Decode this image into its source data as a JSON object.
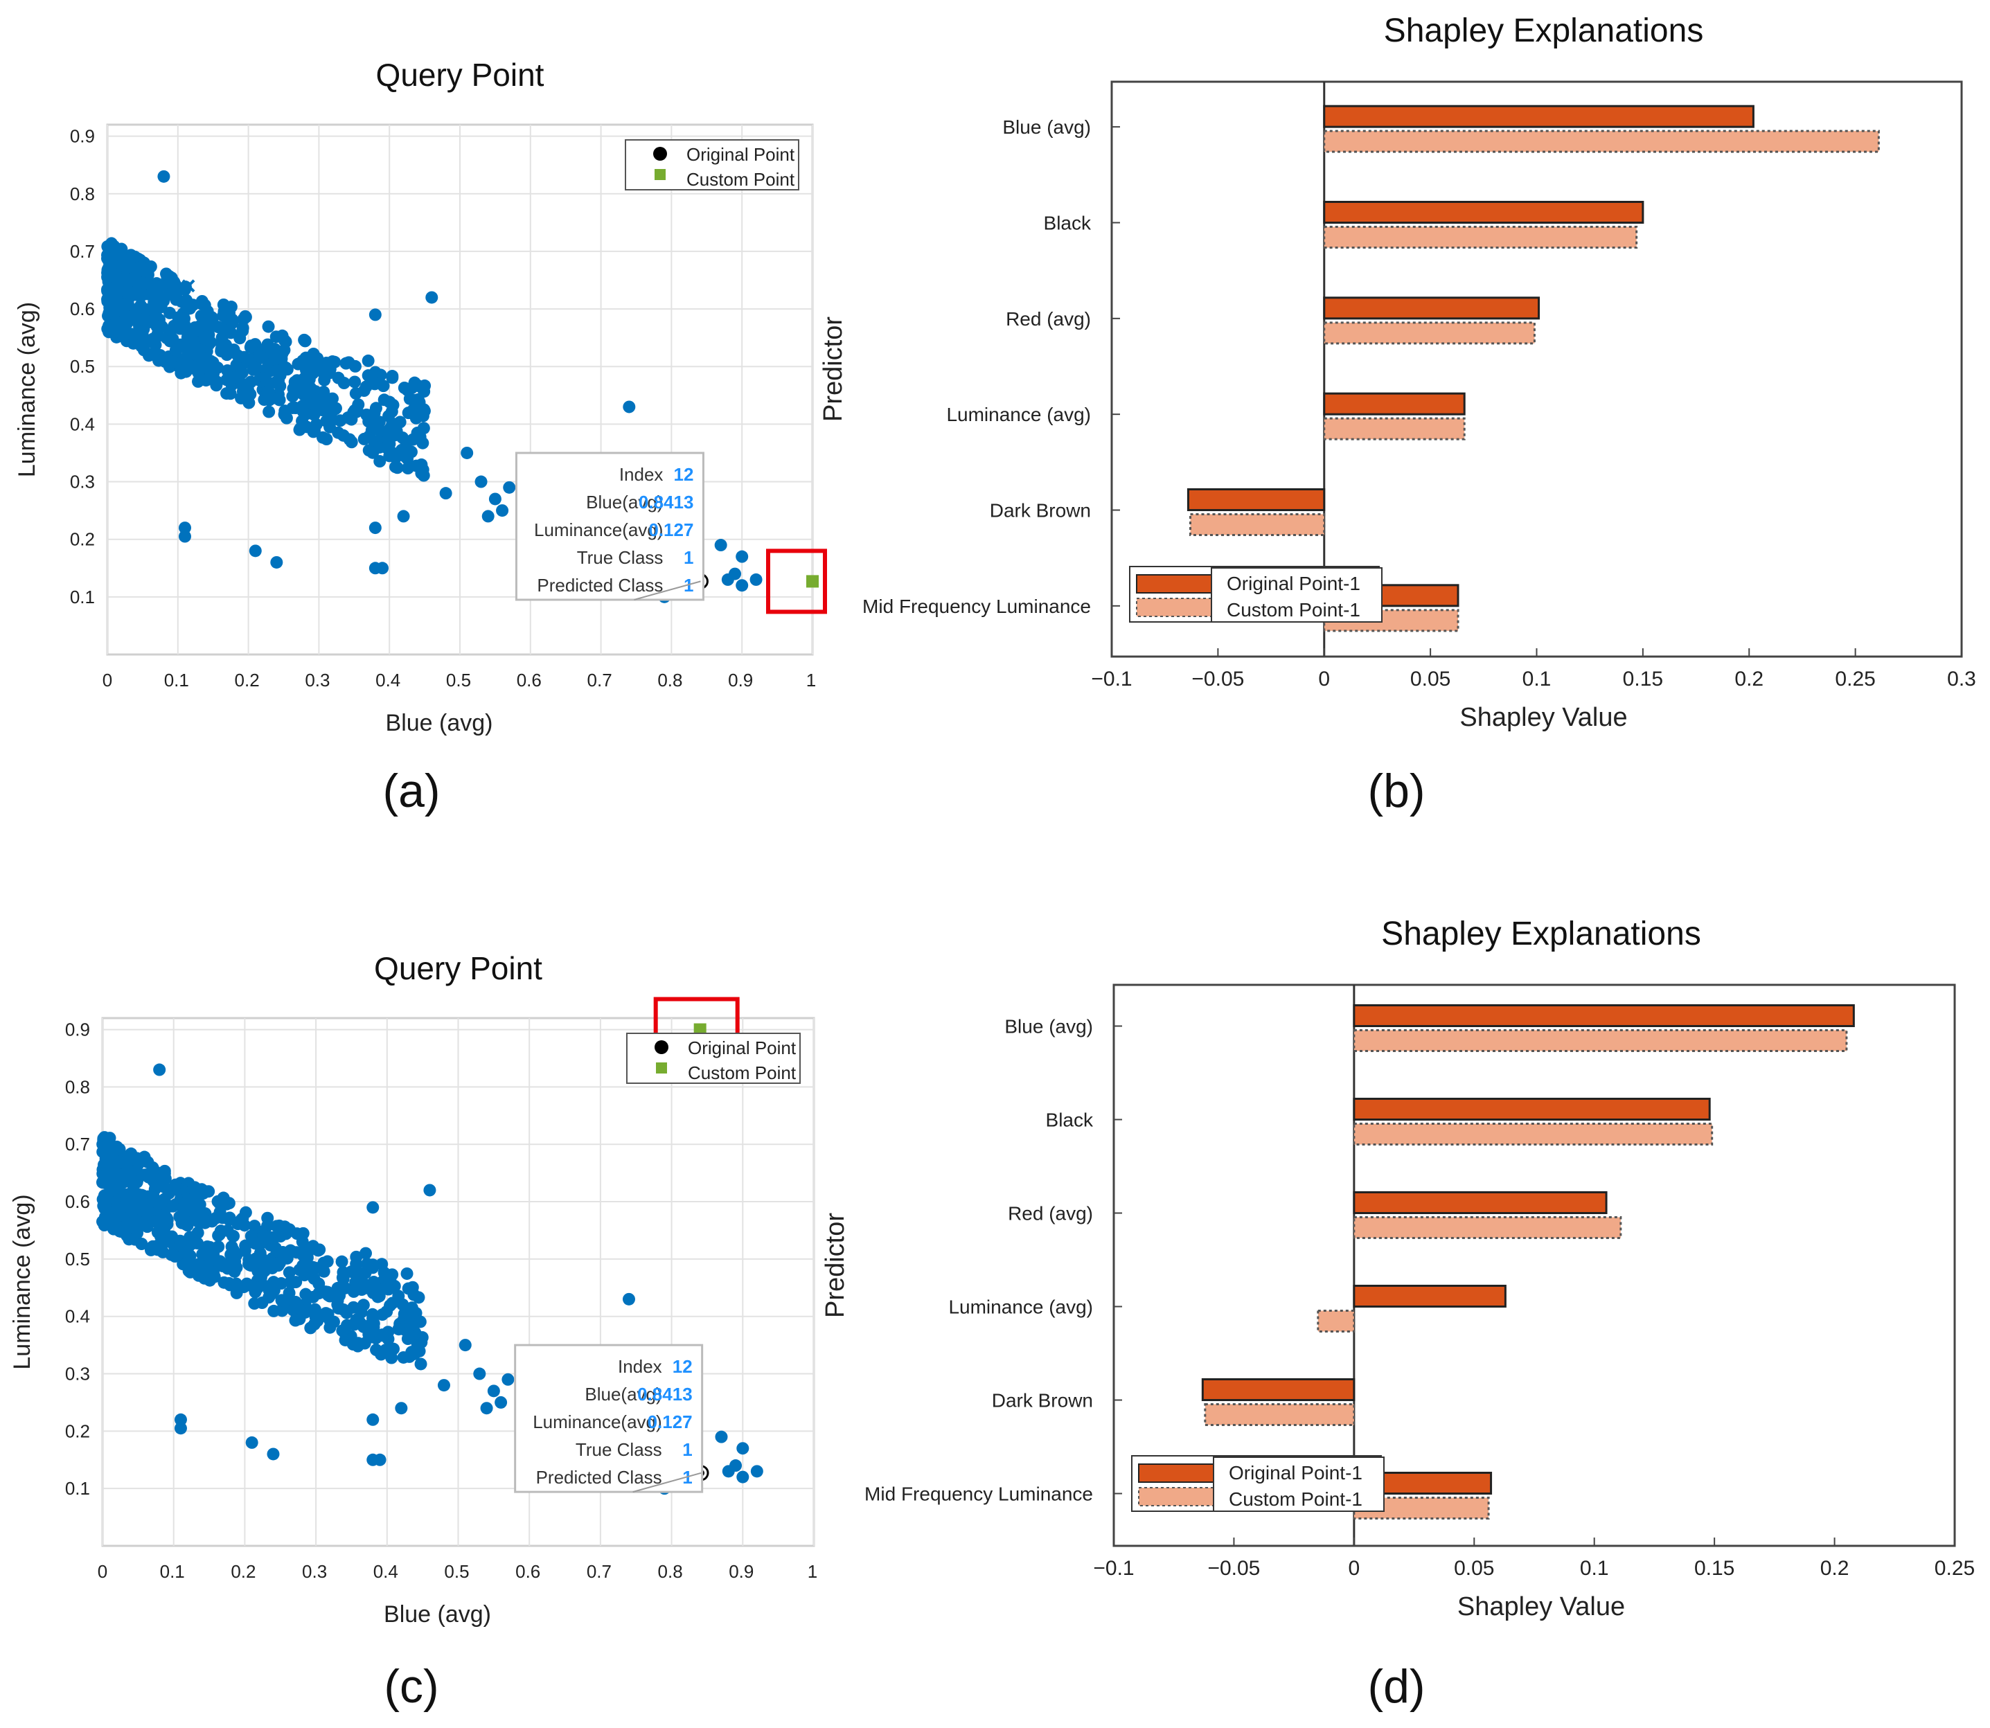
{
  "colors": {
    "scatter": "#0072BD",
    "custom_point": "#77AC30",
    "original_point": "#000000",
    "bar_original": "#D95319",
    "bar_custom": "#F0A988",
    "highlight": "#E8000B",
    "datatip_value": "#1E90FF"
  },
  "chart_data": [
    {
      "id": "a",
      "panel_label": "(a)",
      "type": "scatter",
      "title": "Query Point",
      "xlabel": "Blue (avg)",
      "ylabel": "Luminance (avg)",
      "xlim": [
        0,
        1
      ],
      "ylim": [
        0,
        0.92
      ],
      "xticks": [
        "0",
        "0.1",
        "0.2",
        "0.3",
        "0.4",
        "0.5",
        "0.6",
        "0.7",
        "0.8",
        "0.9",
        "1"
      ],
      "yticks": [
        "0.1",
        "0.2",
        "0.3",
        "0.4",
        "0.5",
        "0.6",
        "0.7",
        "0.8",
        "0.9"
      ],
      "grid": true,
      "legend": {
        "location": "top-right",
        "entries": [
          "Original Point",
          "Custom Point"
        ]
      },
      "original_point": [
        0.8413,
        0.127
      ],
      "custom_point": [
        1.0,
        0.127
      ],
      "datatip": {
        "rows": [
          {
            "label": "Index",
            "value": "12"
          },
          {
            "label": "Blue(avg)",
            "value": "0.8413"
          },
          {
            "label": "Luminance(avg)",
            "value": "0.127"
          },
          {
            "label": "True Class",
            "value": "1"
          },
          {
            "label": "Predicted Class",
            "value": "1"
          }
        ]
      },
      "cross_marker": [
        0.115,
        0.64
      ]
    },
    {
      "id": "b",
      "panel_label": "(b)",
      "type": "bar",
      "orientation": "horizontal",
      "title": "Shapley Explanations",
      "xlabel": "Shapley Value",
      "ylabel": "Predictor",
      "xlim": [
        -0.1,
        0.3
      ],
      "xticks": [
        "−0.1",
        "−0.05",
        "0",
        "0.05",
        "0.1",
        "0.15",
        "0.2",
        "0.25",
        "0.3"
      ],
      "categories": [
        "Blue (avg)",
        "Black",
        "Red (avg)",
        "Luminance (avg)",
        "Dark Brown",
        "Mid Frequency Luminance"
      ],
      "series": [
        {
          "name": "Original Point-1",
          "values": [
            0.202,
            0.15,
            0.101,
            0.066,
            -0.064,
            0.063
          ]
        },
        {
          "name": "Custom Point-1",
          "values": [
            0.261,
            0.147,
            0.099,
            0.066,
            -0.063,
            0.063
          ]
        }
      ],
      "legend": {
        "location": "bottom-left",
        "entries": [
          "Original Point-1",
          "Custom Point-1"
        ]
      }
    },
    {
      "id": "c",
      "panel_label": "(c)",
      "type": "scatter",
      "title": "Query Point",
      "xlabel": "Blue (avg)",
      "ylabel": "Luminance (avg)",
      "xlim": [
        0,
        1
      ],
      "ylim": [
        0,
        0.92
      ],
      "xticks": [
        "0",
        "0.1",
        "0.2",
        "0.3",
        "0.4",
        "0.5",
        "0.6",
        "0.7",
        "0.8",
        "0.9",
        "1"
      ],
      "yticks": [
        "0.1",
        "0.2",
        "0.3",
        "0.4",
        "0.5",
        "0.6",
        "0.7",
        "0.8",
        "0.9"
      ],
      "grid": true,
      "legend": {
        "location": "top-right",
        "entries": [
          "Original Point",
          "Custom Point"
        ]
      },
      "original_point": [
        0.8413,
        0.127
      ],
      "custom_point": [
        0.84,
        0.9
      ],
      "datatip": {
        "rows": [
          {
            "label": "Index",
            "value": "12"
          },
          {
            "label": "Blue(avg)",
            "value": "0.8413"
          },
          {
            "label": "Luminance(avg)",
            "value": "0.127"
          },
          {
            "label": "True Class",
            "value": "1"
          },
          {
            "label": "Predicted Class",
            "value": "1"
          }
        ]
      },
      "cross_marker": [
        0.115,
        0.6
      ]
    },
    {
      "id": "d",
      "panel_label": "(d)",
      "type": "bar",
      "orientation": "horizontal",
      "title": "Shapley Explanations",
      "xlabel": "Shapley Value",
      "ylabel": "Predictor",
      "xlim": [
        -0.1,
        0.25
      ],
      "xticks": [
        "−0.1",
        "−0.05",
        "0",
        "0.05",
        "0.1",
        "0.15",
        "0.2",
        "0.25"
      ],
      "categories": [
        "Blue (avg)",
        "Black",
        "Red (avg)",
        "Luminance (avg)",
        "Dark Brown",
        "Mid Frequency Luminance"
      ],
      "series": [
        {
          "name": "Original Point-1",
          "values": [
            0.208,
            0.148,
            0.105,
            0.063,
            -0.063,
            0.057
          ]
        },
        {
          "name": "Custom Point-1",
          "values": [
            0.205,
            0.149,
            0.111,
            -0.015,
            -0.062,
            0.056
          ]
        }
      ],
      "legend": {
        "location": "bottom-left",
        "entries": [
          "Original Point-1",
          "Custom Point-1"
        ]
      }
    }
  ]
}
